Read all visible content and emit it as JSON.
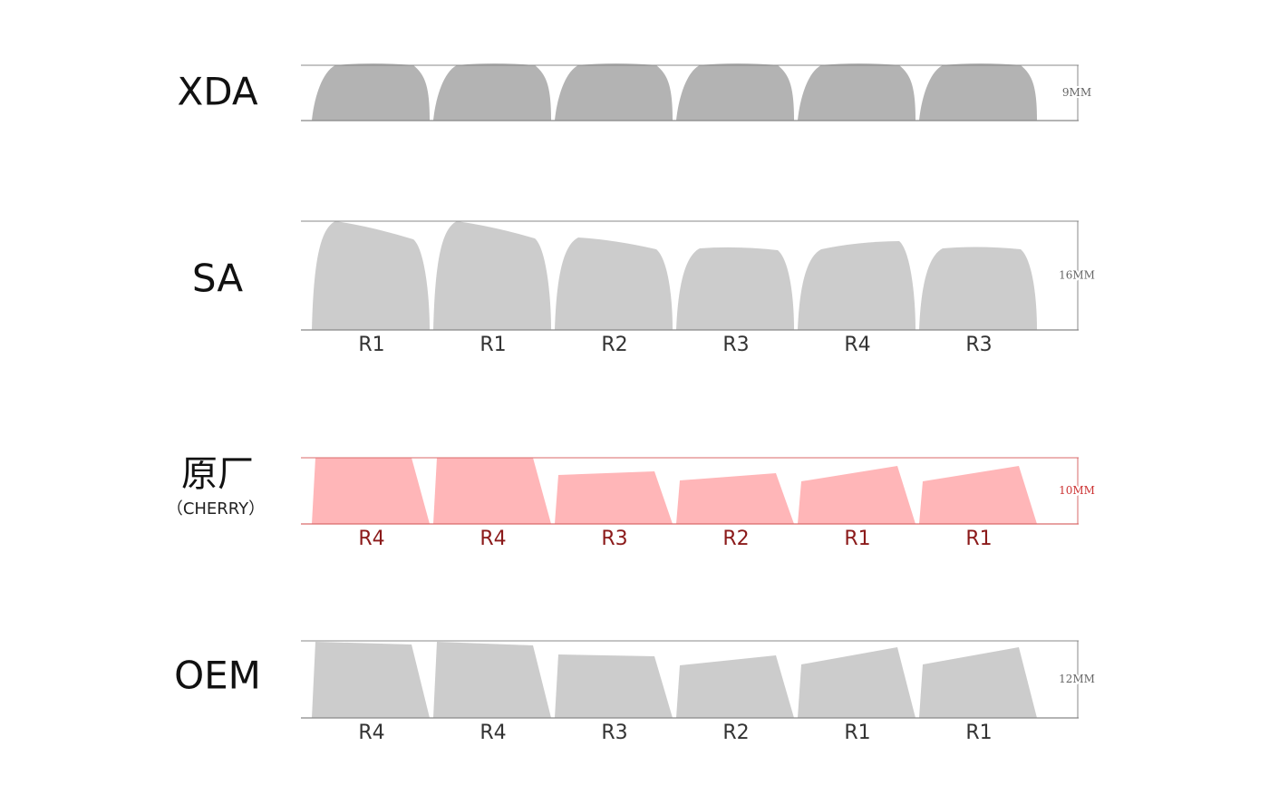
{
  "profiles": [
    {
      "name": "XDA",
      "height": "9MM",
      "rows": []
    },
    {
      "name": "SA",
      "height": "16MM",
      "rows": [
        "R1",
        "R1",
        "R2",
        "R3",
        "R4",
        "R3"
      ]
    },
    {
      "name": "原厂",
      "subname": "（CHERRY）",
      "height": "10MM",
      "rows": [
        "R4",
        "R4",
        "R3",
        "R2",
        "R1",
        "R1"
      ]
    },
    {
      "name": "OEM",
      "height": "12MM",
      "rows": [
        "R4",
        "R4",
        "R3",
        "R2",
        "R1",
        "R1"
      ]
    }
  ]
}
